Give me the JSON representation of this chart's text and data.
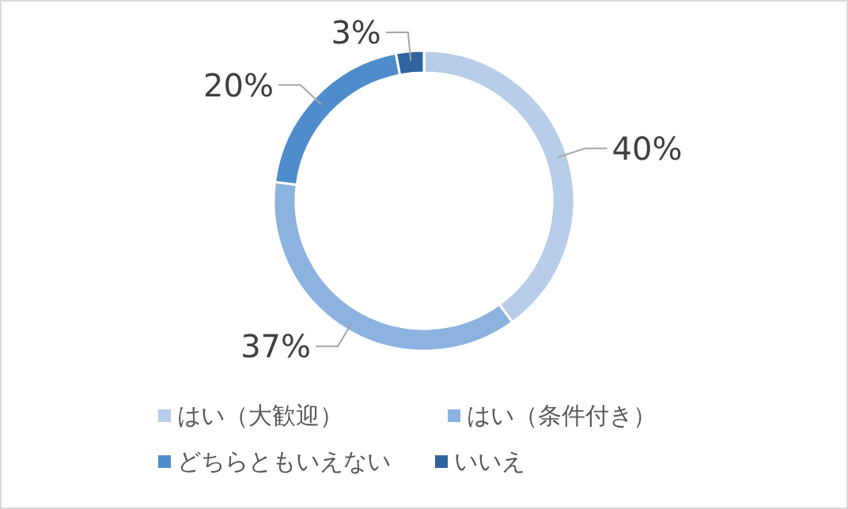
{
  "chart_data": {
    "type": "donut",
    "categories": [
      "はい（大歓迎）",
      "はい（条件付き）",
      "どちらともいえない",
      "いいえ"
    ],
    "values": [
      40,
      37,
      20,
      3
    ],
    "colors": [
      "#b7cde9",
      "#8cb2e0",
      "#4f8ccb",
      "#2f64a0"
    ],
    "value_labels": [
      "40%",
      "37%",
      "20%",
      "3%"
    ],
    "legend": "bottom"
  }
}
